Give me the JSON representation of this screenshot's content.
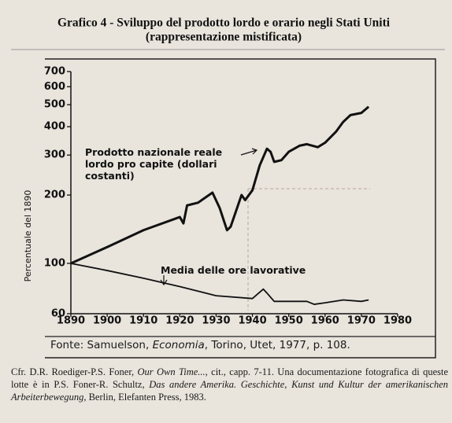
{
  "chart_data": {
    "type": "line",
    "title": "Grafico 4 - Sviluppo del prodotto lordo e orario negli Stati Uniti",
    "subtitle": "(rappresentazione mistificata)",
    "y_label": "Percentuale del 1890",
    "log_y": true,
    "xlim": [
      1890,
      1980
    ],
    "xticks": [
      1890,
      1900,
      1910,
      1920,
      1930,
      1940,
      1950,
      1960,
      1970,
      1980
    ],
    "ylim": [
      60,
      700
    ],
    "yticks": [
      60,
      100,
      200,
      300,
      400,
      500,
      600,
      700
    ],
    "series": [
      {
        "name": "Prodotto nazionale reale lordo pro capite (dollari costanti)",
        "color": "#111111",
        "x": [
          1890,
          1900,
          1910,
          1920,
          1921,
          1922,
          1925,
          1929,
          1931,
          1933,
          1934,
          1937,
          1938,
          1940,
          1942,
          1944,
          1945,
          1946,
          1948,
          1950,
          1953,
          1955,
          1958,
          1960,
          1963,
          1965,
          1967,
          1970,
          1972
        ],
        "values": [
          100,
          118,
          140,
          160,
          150,
          180,
          185,
          205,
          175,
          140,
          145,
          200,
          190,
          210,
          270,
          320,
          310,
          280,
          285,
          310,
          330,
          335,
          325,
          340,
          380,
          420,
          450,
          460,
          490
        ]
      },
      {
        "name": "Media delle ore lavorative",
        "color": "#111111",
        "x": [
          1890,
          1900,
          1910,
          1920,
          1930,
          1940,
          1943,
          1944,
          1946,
          1950,
          1955,
          1957,
          1960,
          1965,
          1970,
          1972
        ],
        "values": [
          100,
          93,
          86,
          79,
          72,
          70,
          77,
          74,
          68,
          68,
          68,
          66,
          67,
          69,
          68,
          69
        ]
      }
    ],
    "source": [
      "Fonte: Samuelson, ",
      "Economia",
      ", Torino, Utet, 1977, p. 108."
    ]
  },
  "footnote": [
    "Cfr. D.R. Roediger-P.S. Foner, ",
    "Our Own Time...",
    ", cit., capp. 7-11. Una documentazione fotografica di queste lotte è in P.S. Foner-R. Schultz, ",
    "Das andere Amerika. Geschichte, Kunst und Kultur der amerikanischen Arbeiterbewegung",
    ", Berlin, Elefanten Press, 1983."
  ]
}
